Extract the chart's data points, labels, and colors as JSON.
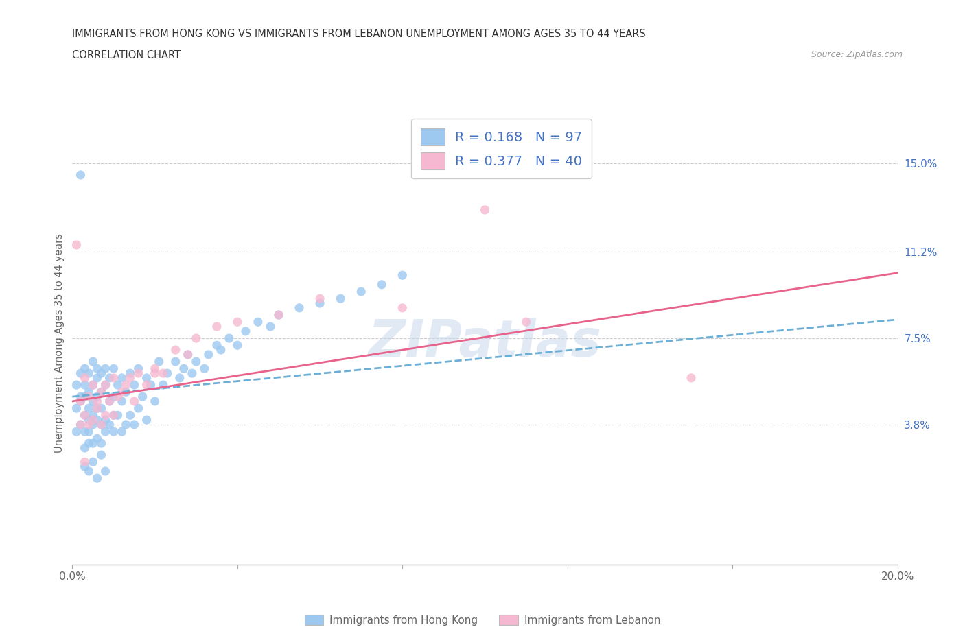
{
  "title_line1": "IMMIGRANTS FROM HONG KONG VS IMMIGRANTS FROM LEBANON UNEMPLOYMENT AMONG AGES 35 TO 44 YEARS",
  "title_line2": "CORRELATION CHART",
  "source_text": "Source: ZipAtlas.com",
  "ylabel": "Unemployment Among Ages 35 to 44 years",
  "xlim": [
    0.0,
    0.2
  ],
  "ylim": [
    -0.022,
    0.168
  ],
  "xticks": [
    0.0,
    0.04,
    0.08,
    0.12,
    0.16,
    0.2
  ],
  "xticklabels": [
    "0.0%",
    "",
    "",
    "",
    "",
    "20.0%"
  ],
  "ytick_right_values": [
    0.038,
    0.075,
    0.112,
    0.15
  ],
  "ytick_right_labels": [
    "3.8%",
    "7.5%",
    "11.2%",
    "15.0%"
  ],
  "hlines": [
    0.038,
    0.075,
    0.112,
    0.15
  ],
  "hk_color": "#9DC8F0",
  "lb_color": "#F5B8D0",
  "hk_line_color": "#6BAED6",
  "lb_line_color": "#E8638C",
  "legend_r_hk": "0.168",
  "legend_n_hk": "97",
  "legend_r_lb": "0.377",
  "legend_n_lb": "40",
  "hk_trend_x0": 0.0,
  "hk_trend_y0": 0.05,
  "hk_trend_x1": 0.2,
  "hk_trend_y1": 0.083,
  "lb_trend_x0": 0.0,
  "lb_trend_y0": 0.048,
  "lb_trend_x1": 0.2,
  "lb_trend_y1": 0.103,
  "hk_scatter_x": [
    0.001,
    0.001,
    0.001,
    0.002,
    0.002,
    0.002,
    0.002,
    0.003,
    0.003,
    0.003,
    0.003,
    0.003,
    0.003,
    0.004,
    0.004,
    0.004,
    0.004,
    0.004,
    0.004,
    0.005,
    0.005,
    0.005,
    0.005,
    0.005,
    0.005,
    0.006,
    0.006,
    0.006,
    0.006,
    0.006,
    0.006,
    0.007,
    0.007,
    0.007,
    0.007,
    0.007,
    0.008,
    0.008,
    0.008,
    0.008,
    0.009,
    0.009,
    0.009,
    0.01,
    0.01,
    0.01,
    0.01,
    0.011,
    0.011,
    0.012,
    0.012,
    0.012,
    0.013,
    0.013,
    0.014,
    0.014,
    0.015,
    0.015,
    0.016,
    0.016,
    0.017,
    0.018,
    0.018,
    0.019,
    0.02,
    0.021,
    0.022,
    0.023,
    0.025,
    0.026,
    0.027,
    0.028,
    0.029,
    0.03,
    0.032,
    0.033,
    0.035,
    0.036,
    0.038,
    0.04,
    0.042,
    0.045,
    0.048,
    0.05,
    0.055,
    0.06,
    0.065,
    0.07,
    0.075,
    0.08,
    0.002,
    0.003,
    0.004,
    0.005,
    0.006,
    0.007,
    0.008
  ],
  "hk_scatter_y": [
    0.045,
    0.055,
    0.035,
    0.048,
    0.06,
    0.038,
    0.05,
    0.042,
    0.062,
    0.035,
    0.055,
    0.028,
    0.05,
    0.04,
    0.052,
    0.03,
    0.06,
    0.045,
    0.035,
    0.048,
    0.065,
    0.038,
    0.055,
    0.03,
    0.042,
    0.05,
    0.062,
    0.04,
    0.032,
    0.058,
    0.045,
    0.052,
    0.038,
    0.06,
    0.03,
    0.045,
    0.055,
    0.04,
    0.062,
    0.035,
    0.048,
    0.058,
    0.038,
    0.05,
    0.042,
    0.062,
    0.035,
    0.055,
    0.042,
    0.048,
    0.058,
    0.035,
    0.052,
    0.038,
    0.06,
    0.042,
    0.055,
    0.038,
    0.062,
    0.045,
    0.05,
    0.058,
    0.04,
    0.055,
    0.048,
    0.065,
    0.055,
    0.06,
    0.065,
    0.058,
    0.062,
    0.068,
    0.06,
    0.065,
    0.062,
    0.068,
    0.072,
    0.07,
    0.075,
    0.072,
    0.078,
    0.082,
    0.08,
    0.085,
    0.088,
    0.09,
    0.092,
    0.095,
    0.098,
    0.102,
    0.145,
    0.02,
    0.018,
    0.022,
    0.015,
    0.025,
    0.018
  ],
  "lb_scatter_x": [
    0.001,
    0.002,
    0.002,
    0.003,
    0.003,
    0.004,
    0.004,
    0.005,
    0.005,
    0.006,
    0.006,
    0.007,
    0.007,
    0.008,
    0.008,
    0.009,
    0.01,
    0.01,
    0.011,
    0.012,
    0.013,
    0.014,
    0.015,
    0.016,
    0.018,
    0.02,
    0.022,
    0.025,
    0.028,
    0.03,
    0.035,
    0.04,
    0.05,
    0.06,
    0.08,
    0.1,
    0.11,
    0.15,
    0.003,
    0.02
  ],
  "lb_scatter_y": [
    0.115,
    0.048,
    0.038,
    0.058,
    0.042,
    0.05,
    0.038,
    0.055,
    0.04,
    0.048,
    0.045,
    0.052,
    0.038,
    0.055,
    0.042,
    0.048,
    0.058,
    0.042,
    0.05,
    0.052,
    0.055,
    0.058,
    0.048,
    0.06,
    0.055,
    0.062,
    0.06,
    0.07,
    0.068,
    0.075,
    0.08,
    0.082,
    0.085,
    0.092,
    0.088,
    0.13,
    0.082,
    0.058,
    0.022,
    0.06
  ]
}
